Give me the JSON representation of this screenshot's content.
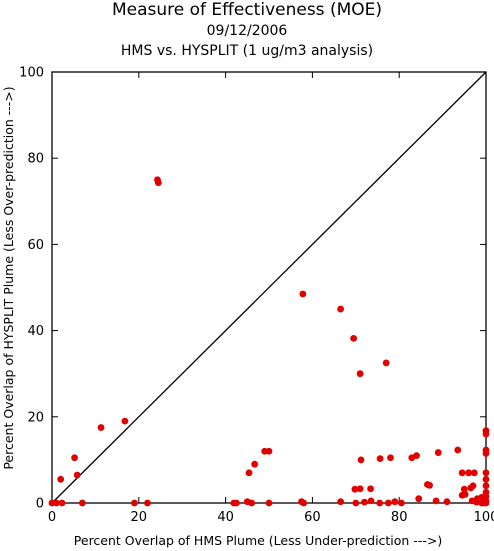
{
  "chart_data": {
    "type": "scatter",
    "title": "Measure of Effectiveness (MOE)",
    "subtitle_date": "09/12/2006",
    "subtitle_analysis": "HMS vs. HYSPLIT  (1 ug/m3 analysis)",
    "xlabel": "Percent Overlap of HMS Plume (Less Under-prediction --->)",
    "ylabel": "Percent Overlap of HYSPLIT Plume (Less Over-prediction --->)",
    "xlim": [
      0,
      100
    ],
    "ylim": [
      0,
      100
    ],
    "x_ticks": [
      "0",
      "20",
      "40",
      "60",
      "80",
      "100"
    ],
    "y_ticks": [
      "0",
      "20",
      "40",
      "60",
      "80",
      "100"
    ],
    "reference_line": "diagonal y = x",
    "marker_color": "#e00000",
    "points": [
      [
        24.3,
        75.0
      ],
      [
        24.5,
        74.3
      ],
      [
        57.8,
        48.5
      ],
      [
        66.5,
        45.0
      ],
      [
        69.5,
        38.2
      ],
      [
        77.0,
        32.5
      ],
      [
        71.0,
        30.0
      ],
      [
        16.8,
        19.0
      ],
      [
        11.3,
        17.5
      ],
      [
        5.2,
        10.5
      ],
      [
        5.8,
        6.5
      ],
      [
        2.0,
        5.5
      ],
      [
        0.0,
        0.0
      ],
      [
        1.0,
        0.0
      ],
      [
        2.3,
        0.0
      ],
      [
        7.0,
        0.0
      ],
      [
        19.0,
        0.0
      ],
      [
        22.0,
        0.0
      ],
      [
        49.0,
        12.0
      ],
      [
        50.0,
        12.0
      ],
      [
        46.7,
        9.0
      ],
      [
        45.4,
        7.0
      ],
      [
        41.9,
        0.0
      ],
      [
        42.5,
        0.0
      ],
      [
        45.0,
        0.3
      ],
      [
        46.0,
        0.0
      ],
      [
        50.0,
        0.0
      ],
      [
        57.5,
        0.3
      ],
      [
        58.0,
        0.0
      ],
      [
        66.5,
        0.3
      ],
      [
        70.0,
        0.0
      ],
      [
        69.8,
        3.2
      ],
      [
        71.0,
        3.3
      ],
      [
        73.4,
        3.3
      ],
      [
        71.2,
        10.0
      ],
      [
        75.6,
        10.3
      ],
      [
        78.0,
        10.5
      ],
      [
        82.9,
        10.5
      ],
      [
        84.0,
        11.0
      ],
      [
        89.0,
        11.7
      ],
      [
        93.5,
        12.3
      ],
      [
        86.5,
        4.3
      ],
      [
        87.0,
        4.1
      ],
      [
        84.5,
        1.0
      ],
      [
        72.0,
        0.2
      ],
      [
        73.5,
        0.5
      ],
      [
        75.5,
        0.0
      ],
      [
        77.5,
        0.0
      ],
      [
        79.0,
        0.3
      ],
      [
        80.5,
        0.0
      ],
      [
        88.5,
        0.5
      ],
      [
        91.0,
        0.3
      ],
      [
        94.5,
        7.0
      ],
      [
        96.0,
        7.0
      ],
      [
        97.3,
        7.0
      ],
      [
        95.0,
        3.2
      ],
      [
        96.5,
        3.5
      ],
      [
        97.0,
        4.0
      ],
      [
        94.5,
        1.8
      ],
      [
        95.2,
        2.0
      ],
      [
        96.8,
        0.5
      ],
      [
        97.8,
        0.2
      ],
      [
        99.0,
        0.0
      ],
      [
        99.5,
        0.0
      ],
      [
        100.0,
        0.0
      ],
      [
        100.0,
        0.5
      ],
      [
        100.0,
        1.5
      ],
      [
        100.0,
        2.5
      ],
      [
        100.0,
        4.0
      ],
      [
        100.0,
        5.5
      ],
      [
        100.0,
        7.0
      ],
      [
        100.0,
        11.5
      ],
      [
        100.0,
        12.3
      ],
      [
        100.0,
        16.0
      ],
      [
        100.0,
        16.8
      ],
      [
        98.0,
        1.0
      ],
      [
        99.0,
        1.3
      ]
    ]
  }
}
